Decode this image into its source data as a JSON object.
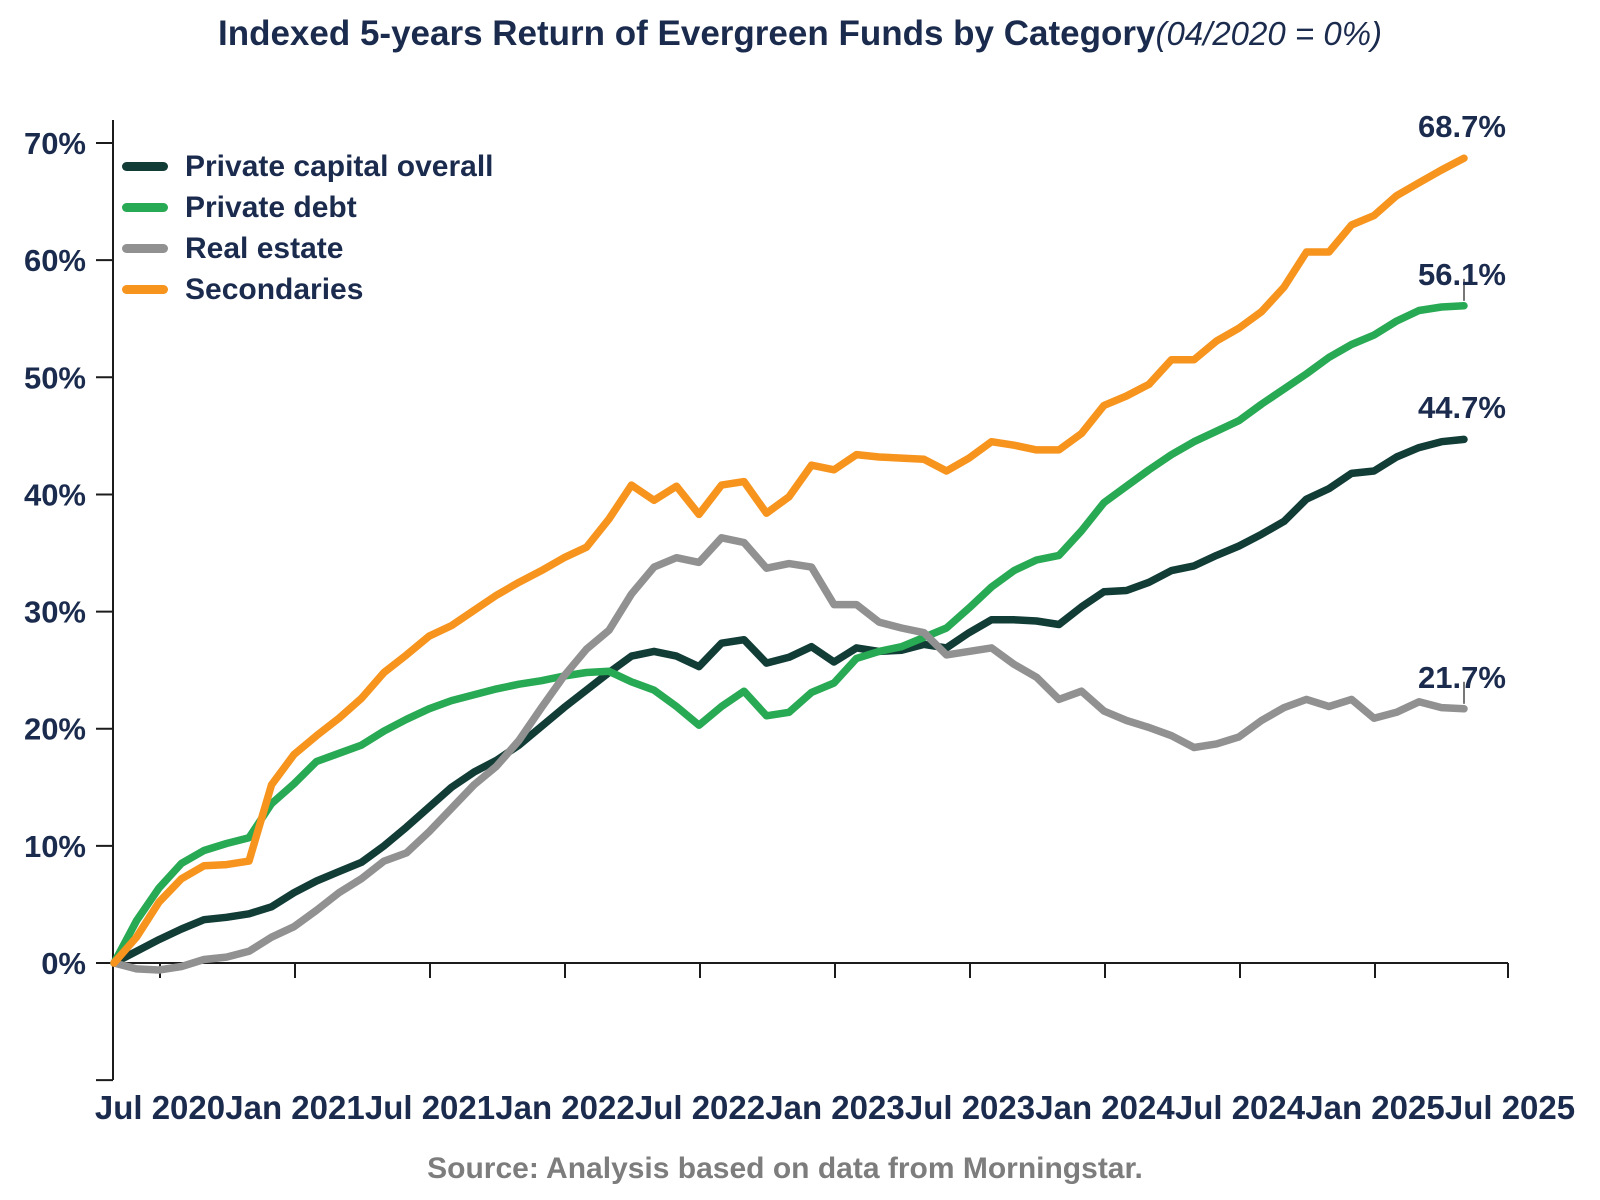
{
  "title": {
    "main": "Indexed 5-years Return of Evergreen Funds by Category",
    "suffix": "(04/2020 = 0%)"
  },
  "source": "Source: Analysis based on data from Morningstar.",
  "colors": {
    "axis": "#1c1c1c",
    "text_navy": "#1b2b4e",
    "source_gray": "#7d7d7d",
    "leader": "#777777"
  },
  "chart_data": {
    "type": "line",
    "title": "Indexed 5-years Return of Evergreen Funds by Category (04/2020 = 0%)",
    "x_start": "2020-04",
    "x_step_months": 1,
    "x_points": 61,
    "x_tick_labels": [
      "Jul 2020",
      "Jan 2021",
      "Jul 2021",
      "Jan 2022",
      "Jul 2022",
      "Jan 2023",
      "Jul 2023",
      "Jan 2024",
      "Jul 2024",
      "Jan 2025",
      "Jul 2025"
    ],
    "y_tick_values": [
      0,
      10,
      20,
      30,
      40,
      50,
      60,
      70
    ],
    "y_tick_labels": [
      "0%",
      "10%",
      "20%",
      "30%",
      "40%",
      "50%",
      "60%",
      "70%"
    ],
    "y_axis_extra_ticks": [
      -10
    ],
    "ylim": [
      -10,
      70
    ],
    "ylabel": "",
    "xlabel": "",
    "grid": false,
    "legend_position": "top-left",
    "series": [
      {
        "name": "Private capital overall",
        "color": "#123c36",
        "end_label": "44.7%",
        "leader": false,
        "values": [
          0,
          1,
          2,
          2.9,
          3.7,
          3.9,
          4.2,
          4.8,
          6,
          7,
          7.8,
          8.6,
          10,
          11.6,
          13.3,
          15,
          16.3,
          17.3,
          18.6,
          20.2,
          21.8,
          23.3,
          24.8,
          26.2,
          26.6,
          26.2,
          25.3,
          27.3,
          27.6,
          25.6,
          26.1,
          27,
          25.7,
          26.9,
          26.6,
          26.7,
          27.2,
          26.9,
          28.2,
          29.3,
          29.3,
          29.2,
          28.9,
          30.4,
          31.7,
          31.8,
          32.5,
          33.5,
          33.9,
          34.8,
          35.6,
          36.6,
          37.7,
          39.6,
          40.5,
          41.8,
          42,
          43.2,
          44,
          44.5,
          44.7
        ]
      },
      {
        "name": "Private debt",
        "color": "#28a953",
        "end_label": "56.1%",
        "leader": true,
        "values": [
          0,
          3.6,
          6.4,
          8.5,
          9.6,
          10.2,
          10.7,
          13.6,
          15.3,
          17.2,
          17.9,
          18.6,
          19.8,
          20.8,
          21.7,
          22.4,
          22.9,
          23.4,
          23.8,
          24.1,
          24.5,
          24.8,
          24.9,
          24,
          23.3,
          21.9,
          20.3,
          21.9,
          23.2,
          21.1,
          21.4,
          23.1,
          23.9,
          26,
          26.6,
          27,
          27.8,
          28.6,
          30.3,
          32.1,
          33.5,
          34.4,
          34.8,
          36.9,
          39.3,
          40.7,
          42.1,
          43.4,
          44.5,
          45.4,
          46.3,
          47.7,
          49,
          50.3,
          51.7,
          52.8,
          53.6,
          54.8,
          55.7,
          56,
          56.1
        ]
      },
      {
        "name": "Real estate",
        "color": "#919191",
        "end_label": "21.7%",
        "leader": true,
        "values": [
          0,
          -0.5,
          -0.6,
          -0.3,
          0.3,
          0.5,
          1,
          2.2,
          3.1,
          4.5,
          6,
          7.2,
          8.7,
          9.4,
          11.2,
          13.2,
          15.2,
          16.8,
          19,
          21.8,
          24.5,
          26.8,
          28.4,
          31.5,
          33.8,
          34.6,
          34.2,
          36.3,
          35.9,
          33.7,
          34.1,
          33.8,
          30.6,
          30.6,
          29.1,
          28.6,
          28.2,
          26.3,
          26.6,
          26.9,
          25.5,
          24.4,
          22.5,
          23.2,
          21.5,
          20.7,
          20.1,
          19.4,
          18.4,
          18.7,
          19.3,
          20.7,
          21.8,
          22.5,
          21.9,
          22.5,
          20.9,
          21.4,
          22.3,
          21.8,
          21.7
        ]
      },
      {
        "name": "Secondaries",
        "color": "#f7941d",
        "end_label": "68.7%",
        "leader": false,
        "values": [
          0,
          2.2,
          5.2,
          7.2,
          8.3,
          8.4,
          8.7,
          15.2,
          17.8,
          19.4,
          20.9,
          22.6,
          24.8,
          26.3,
          27.9,
          28.8,
          30.1,
          31.4,
          32.5,
          33.5,
          34.6,
          35.5,
          37.9,
          40.8,
          39.5,
          40.7,
          38.3,
          40.8,
          41.1,
          38.4,
          39.8,
          42.5,
          42.1,
          43.4,
          43.2,
          43.1,
          43,
          42,
          43.1,
          44.5,
          44.2,
          43.8,
          43.8,
          45.2,
          47.6,
          48.4,
          49.4,
          51.5,
          51.5,
          53.1,
          54.2,
          55.6,
          57.7,
          60.7,
          60.7,
          63,
          63.8,
          65.5,
          66.6,
          67.7,
          68.7
        ]
      }
    ]
  }
}
